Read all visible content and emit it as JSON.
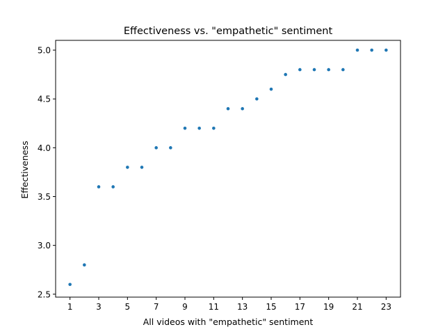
{
  "chart_data": {
    "type": "scatter",
    "title": "Effectiveness vs. \"empathetic\" sentiment",
    "xlabel": "All videos with \"empathetic\" sentiment",
    "ylabel": "Effectiveness",
    "xlim": [
      0,
      24
    ],
    "ylim": [
      2.47,
      5.1
    ],
    "xticks": [
      1,
      3,
      5,
      7,
      9,
      11,
      13,
      15,
      17,
      19,
      21,
      23
    ],
    "yticks": [
      2.5,
      3.0,
      3.5,
      4.0,
      4.5,
      5.0
    ],
    "ytick_labels": [
      "2.5",
      "3.0",
      "3.5",
      "4.0",
      "4.5",
      "5.0"
    ],
    "grid": false,
    "marker_color": "#1f77b4",
    "x": [
      1,
      2,
      3,
      4,
      5,
      6,
      7,
      8,
      9,
      10,
      11,
      12,
      13,
      14,
      15,
      16,
      17,
      18,
      19,
      20,
      21,
      22,
      23
    ],
    "y": [
      2.6,
      2.8,
      3.6,
      3.6,
      3.8,
      3.8,
      4.0,
      4.0,
      4.2,
      4.2,
      4.2,
      4.4,
      4.4,
      4.5,
      4.6,
      4.75,
      4.8,
      4.8,
      4.8,
      4.8,
      5.0,
      5.0,
      5.0
    ]
  }
}
